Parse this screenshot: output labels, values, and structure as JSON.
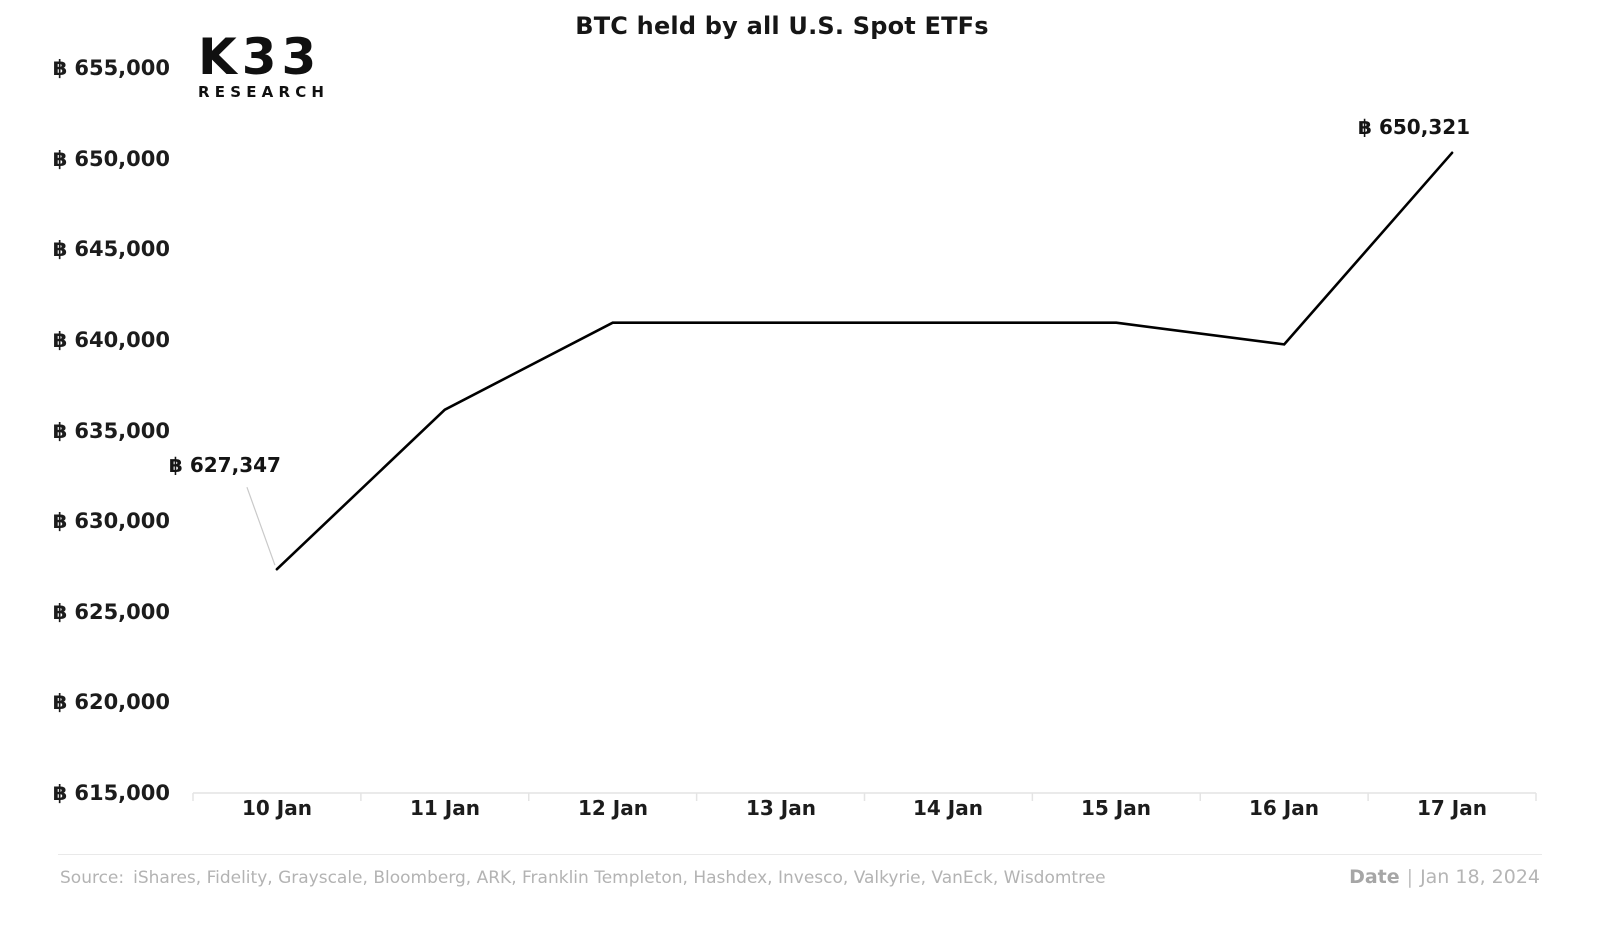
{
  "title": "BTC held by all U.S. Spot ETFs",
  "logo": {
    "line1": "K33",
    "line2": "RESEARCH"
  },
  "footer": {
    "source_label": "Source:",
    "source_text": "iShares, Fidelity, Grayscale, Bloomberg, ARK, Franklin Templeton, Hashdex, Invesco, Valkyrie, VanEck, Wisdomtree",
    "date_label": "Date",
    "date_separator": "|",
    "date_value": "Jan 18, 2024"
  },
  "chart_data": {
    "type": "line",
    "title": "BTC held by all U.S. Spot ETFs",
    "currency_symbol": "₿",
    "categories": [
      "10 Jan",
      "11 Jan",
      "12 Jan",
      "13 Jan",
      "14 Jan",
      "15 Jan",
      "16 Jan",
      "17 Jan"
    ],
    "series": [
      {
        "name": "BTC held by all U.S. Spot ETFs",
        "values": [
          627347,
          636150,
          640950,
          640950,
          640950,
          640950,
          639750,
          650321
        ]
      }
    ],
    "annotations": [
      {
        "index": 0,
        "label": "627,347",
        "value": 627347
      },
      {
        "index": 7,
        "label": "650,321",
        "value": 650321
      }
    ],
    "y_ticks": [
      615000,
      620000,
      625000,
      630000,
      635000,
      640000,
      645000,
      650000,
      655000
    ],
    "y_tick_labels": [
      "615,000",
      "620,000",
      "625,000",
      "630,000",
      "635,000",
      "640,000",
      "645,000",
      "650,000",
      "655,000"
    ],
    "ylim": [
      615000,
      655000
    ],
    "grid": false,
    "legend": false,
    "line_color": "#000000",
    "axis_color": "#e4e4e4",
    "connector_color": "#c9c9c9"
  }
}
